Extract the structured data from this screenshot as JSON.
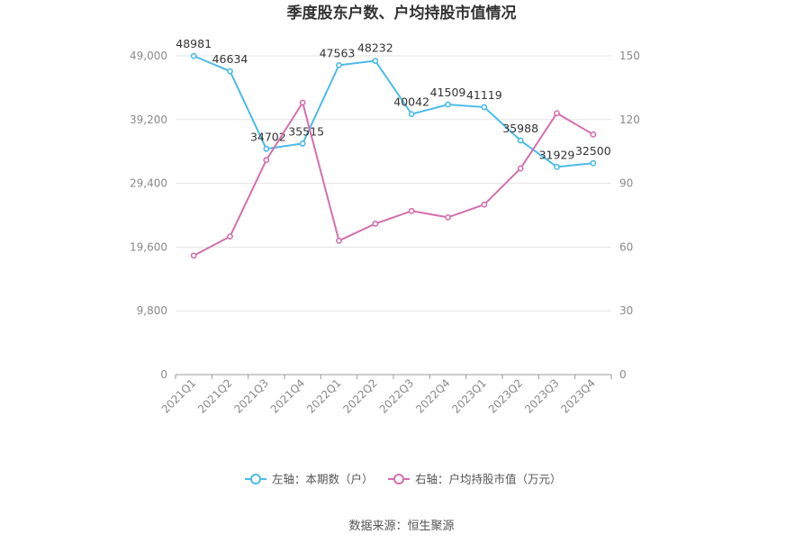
{
  "chart_data": {
    "type": "line",
    "title": "季度股东户数、户均持股市值情况",
    "categories": [
      "2021Q1",
      "2021Q2",
      "2021Q3",
      "2021Q4",
      "2022Q1",
      "2022Q2",
      "2022Q3",
      "2022Q4",
      "2023Q1",
      "2023Q2",
      "2023Q3",
      "2023Q4"
    ],
    "left_axis": {
      "ticks": [
        "0",
        "9,800",
        "19,600",
        "29,400",
        "39,200",
        "49,000"
      ],
      "min": 0,
      "max": 49000
    },
    "right_axis": {
      "ticks": [
        "0",
        "30",
        "60",
        "90",
        "120",
        "150"
      ],
      "min": 0,
      "max": 150
    },
    "grid": true,
    "legend_position": "bottom",
    "series": [
      {
        "name": "左轴：本期数（户）",
        "axis": "left",
        "color": "#4cbbea",
        "values": [
          48981,
          46634,
          34702,
          35515,
          47563,
          48232,
          40042,
          41509,
          41119,
          35988,
          31929,
          32500
        ],
        "labels": [
          "48981",
          "46634",
          "34702",
          "35515",
          "47563",
          "48232",
          "40042",
          "41509",
          "41119",
          "35988",
          "31929",
          "32500"
        ]
      },
      {
        "name": "右轴：户均持股市值（万元）",
        "axis": "right",
        "color": "#d46fad",
        "values": [
          56,
          65,
          101,
          128,
          63,
          71,
          77,
          74,
          80,
          97,
          123,
          113
        ]
      }
    ]
  },
  "source_text": "数据来源：恒生聚源"
}
